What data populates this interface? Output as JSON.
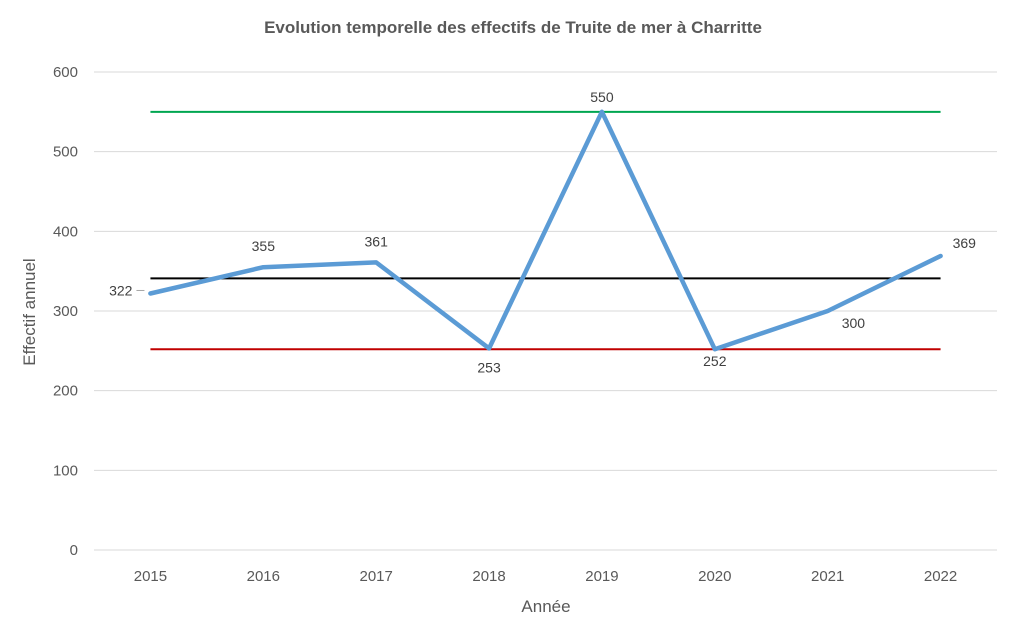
{
  "chart_data": {
    "type": "line",
    "title": "Evolution temporelle des effectifs de Truite de mer à Charritte",
    "xlabel": "Année",
    "ylabel": "Effectif annuel",
    "categories": [
      "2015",
      "2016",
      "2017",
      "2018",
      "2019",
      "2020",
      "2021",
      "2022"
    ],
    "ylim": [
      0,
      600
    ],
    "yticks": [
      0,
      100,
      200,
      300,
      400,
      500,
      600
    ],
    "grid": true,
    "legend": "none",
    "series": [
      {
        "values": [
          322,
          355,
          361,
          253,
          550,
          252,
          300,
          369
        ],
        "color": "#5b9bd5",
        "data_labels": [
          "322",
          "355",
          "361",
          "253",
          "550",
          "252",
          "300",
          "369"
        ]
      }
    ],
    "reference_lines": [
      {
        "value": 550,
        "color": "#00a651"
      },
      {
        "value": 341,
        "color": "#000000"
      },
      {
        "value": 252,
        "color": "#c00000"
      }
    ]
  }
}
